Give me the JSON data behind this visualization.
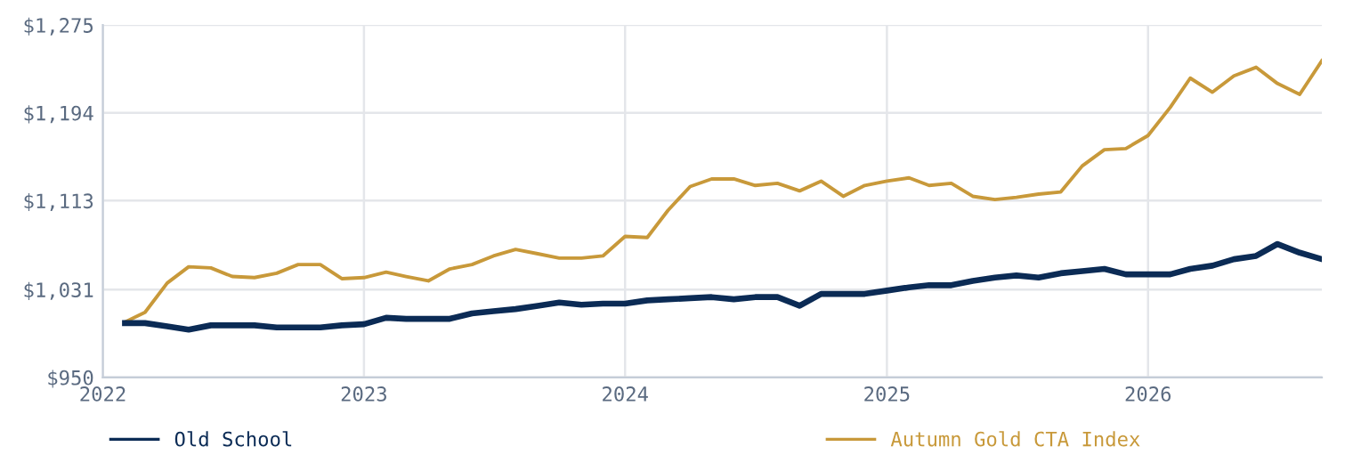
{
  "chart_data": {
    "type": "line",
    "x": [
      "2022-02",
      "2022-03",
      "2022-04",
      "2022-05",
      "2022-06",
      "2022-07",
      "2022-08",
      "2022-09",
      "2022-10",
      "2022-11",
      "2022-12",
      "2023-01",
      "2023-02",
      "2023-03",
      "2023-04",
      "2023-05",
      "2023-06",
      "2023-07",
      "2023-08",
      "2023-09",
      "2023-10",
      "2023-11",
      "2023-12",
      "2024-01",
      "2024-02",
      "2024-03",
      "2024-04",
      "2024-05",
      "2024-06",
      "2024-07",
      "2024-08",
      "2024-09",
      "2024-10",
      "2024-11",
      "2024-12",
      "2025-01",
      "2025-02",
      "2025-03",
      "2025-04",
      "2025-05",
      "2025-06",
      "2025-07",
      "2025-08",
      "2025-09",
      "2025-10",
      "2025-11",
      "2025-12",
      "2026-01",
      "2026-02",
      "2026-03",
      "2026-04",
      "2026-05",
      "2026-06",
      "2026-07",
      "2026-08",
      "2026-09"
    ],
    "series": [
      {
        "name": "Old School",
        "color": "#0b2b55",
        "values": [
          1000,
          1000,
          997,
          994,
          998,
          998,
          998,
          996,
          996,
          996,
          998,
          999,
          1005,
          1004,
          1004,
          1004,
          1009,
          1011,
          1013,
          1016,
          1019,
          1017,
          1018,
          1018,
          1021,
          1022,
          1023,
          1024,
          1022,
          1024,
          1024,
          1016,
          1027,
          1027,
          1027,
          1030,
          1033,
          1035,
          1035,
          1039,
          1042,
          1044,
          1042,
          1046,
          1048,
          1050,
          1045,
          1045,
          1045,
          1050,
          1053,
          1059,
          1062,
          1073,
          1065,
          1059
        ]
      },
      {
        "name": "Autumn Gold CTA Index",
        "color": "#c8993a",
        "values": [
          1001,
          1010,
          1037,
          1052,
          1051,
          1043,
          1042,
          1046,
          1054,
          1054,
          1041,
          1042,
          1047,
          1043,
          1039,
          1050,
          1054,
          1062,
          1068,
          1064,
          1060,
          1060,
          1062,
          1080,
          1079,
          1104,
          1126,
          1133,
          1133,
          1127,
          1129,
          1122,
          1131,
          1117,
          1127,
          1131,
          1134,
          1127,
          1129,
          1117,
          1114,
          1116,
          1119,
          1121,
          1145,
          1160,
          1161,
          1173,
          1199,
          1226,
          1213,
          1228,
          1236,
          1221,
          1211,
          1242
        ]
      }
    ],
    "xlim": [
      "2022-01",
      "2026-09"
    ],
    "xticks": [
      {
        "value": "2022-01",
        "label": "2022"
      },
      {
        "value": "2023-01",
        "label": "2023"
      },
      {
        "value": "2024-01",
        "label": "2024"
      },
      {
        "value": "2025-01",
        "label": "2025"
      },
      {
        "value": "2026-01",
        "label": "2026"
      }
    ],
    "ylim": [
      950,
      1275
    ],
    "yticks": [
      {
        "value": 950,
        "label": "$950"
      },
      {
        "value": 1031,
        "label": "$1,031"
      },
      {
        "value": 1113,
        "label": "$1,113"
      },
      {
        "value": 1194,
        "label": "$1,194"
      },
      {
        "value": 1275,
        "label": "$1,275"
      }
    ],
    "grid": true,
    "legend": "bottom",
    "marker": "none",
    "line_style": "solid"
  }
}
